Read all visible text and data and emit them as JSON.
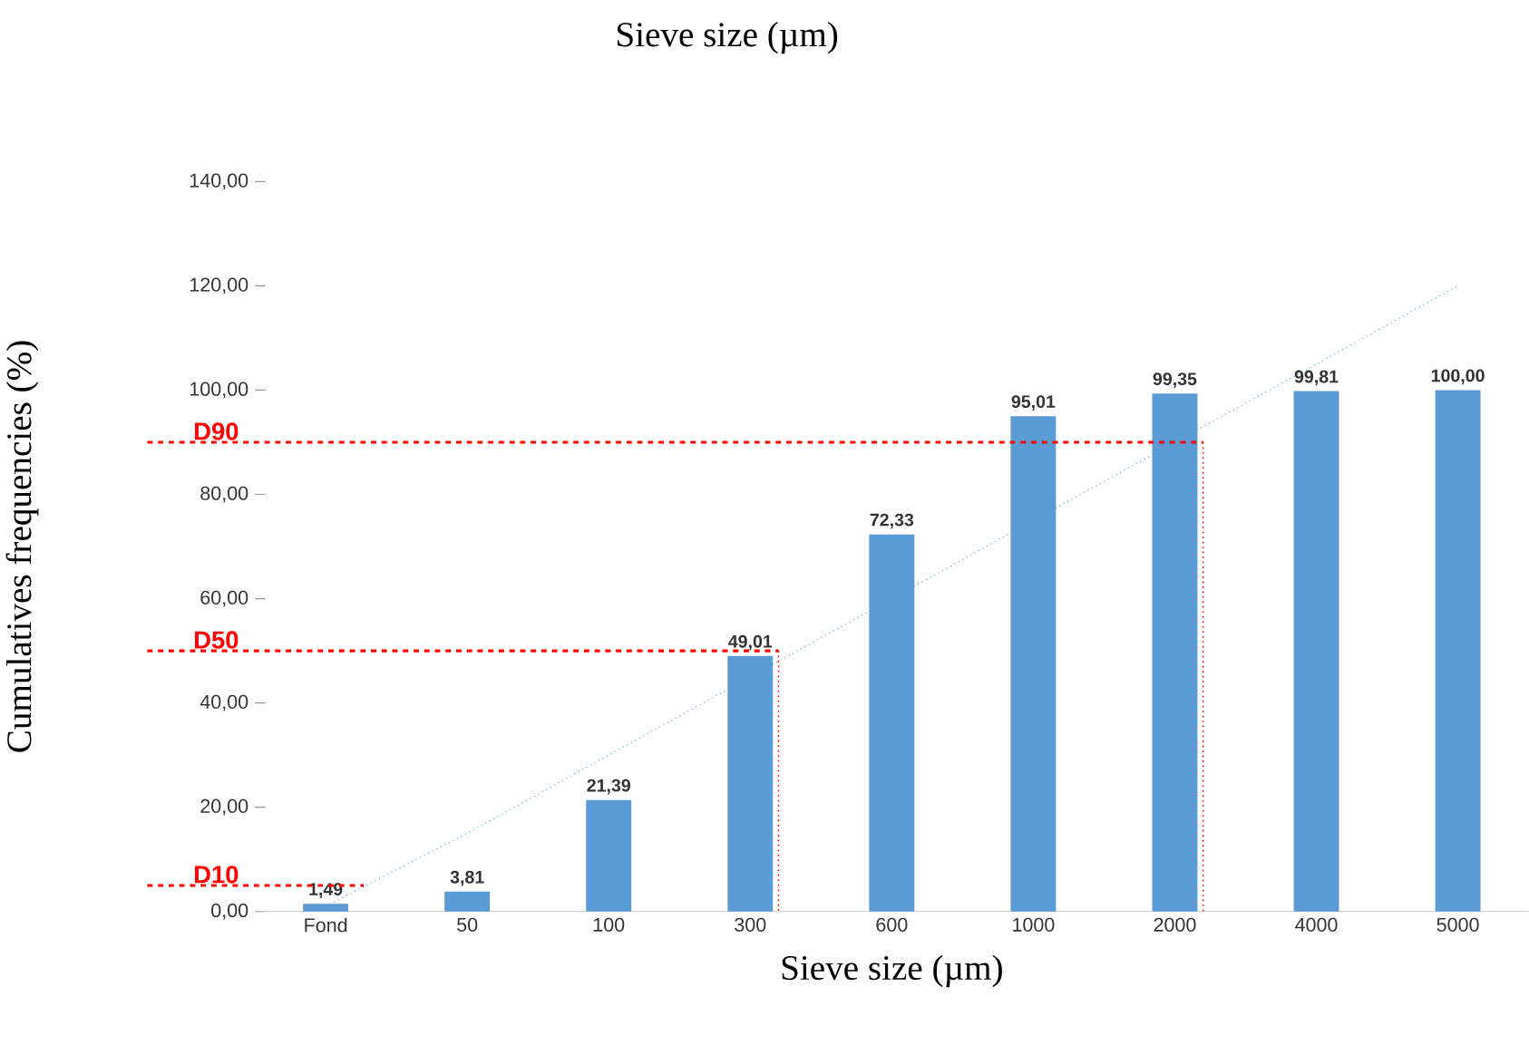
{
  "chart_data": {
    "type": "bar",
    "title": "Sieve size (µm)",
    "xlabel": "Sieve size (µm)",
    "ylabel": "Cumulatives frequencies (%)",
    "categories": [
      "Fond",
      "50",
      "100",
      "300",
      "600",
      "1000",
      "2000",
      "4000",
      "5000"
    ],
    "series": [
      {
        "color": "#5b9bd5",
        "values": [
          1.49,
          3.81,
          21.39,
          49.01,
          72.33,
          95.01,
          99.35,
          99.81,
          100.0
        ],
        "value_labels": [
          "1,49",
          "3,81",
          "21,39",
          "49,01",
          "72,33",
          "95,01",
          "99,35",
          "99,81",
          "100,00"
        ]
      },
      {
        "type": "line",
        "line_style": "dotted",
        "color": "#5b9bd5",
        "values": [
          1,
          15,
          30,
          45,
          60,
          75,
          90,
          105,
          120
        ]
      }
    ],
    "ylim": [
      0,
      140
    ],
    "yticks": [
      {
        "value": 0,
        "label": "0,00"
      },
      {
        "value": 20,
        "label": "20,00"
      },
      {
        "value": 40,
        "label": "40,00"
      },
      {
        "value": 60,
        "label": "60,00"
      },
      {
        "value": 80,
        "label": "80,00"
      },
      {
        "value": 100,
        "label": "100,00"
      },
      {
        "value": 120,
        "label": "120,00"
      },
      {
        "value": 140,
        "label": "140,00"
      }
    ],
    "ref_lines": [
      {
        "axis": "y",
        "value": 90,
        "label": "D90",
        "color": "#ff0000",
        "line_style": "dashed"
      },
      {
        "axis": "y",
        "value": 50,
        "label": "D50",
        "color": "#ff0000",
        "line_style": "dashed"
      },
      {
        "axis": "y",
        "value": 5,
        "label": "D10",
        "color": "#ff0000",
        "line_style": "dashed"
      },
      {
        "axis": "x",
        "value": "2000",
        "color": "#ff0000",
        "line_style": "dotted"
      },
      {
        "axis": "x",
        "value": "300",
        "color": "#ff0000",
        "line_style": "dotted"
      }
    ]
  }
}
